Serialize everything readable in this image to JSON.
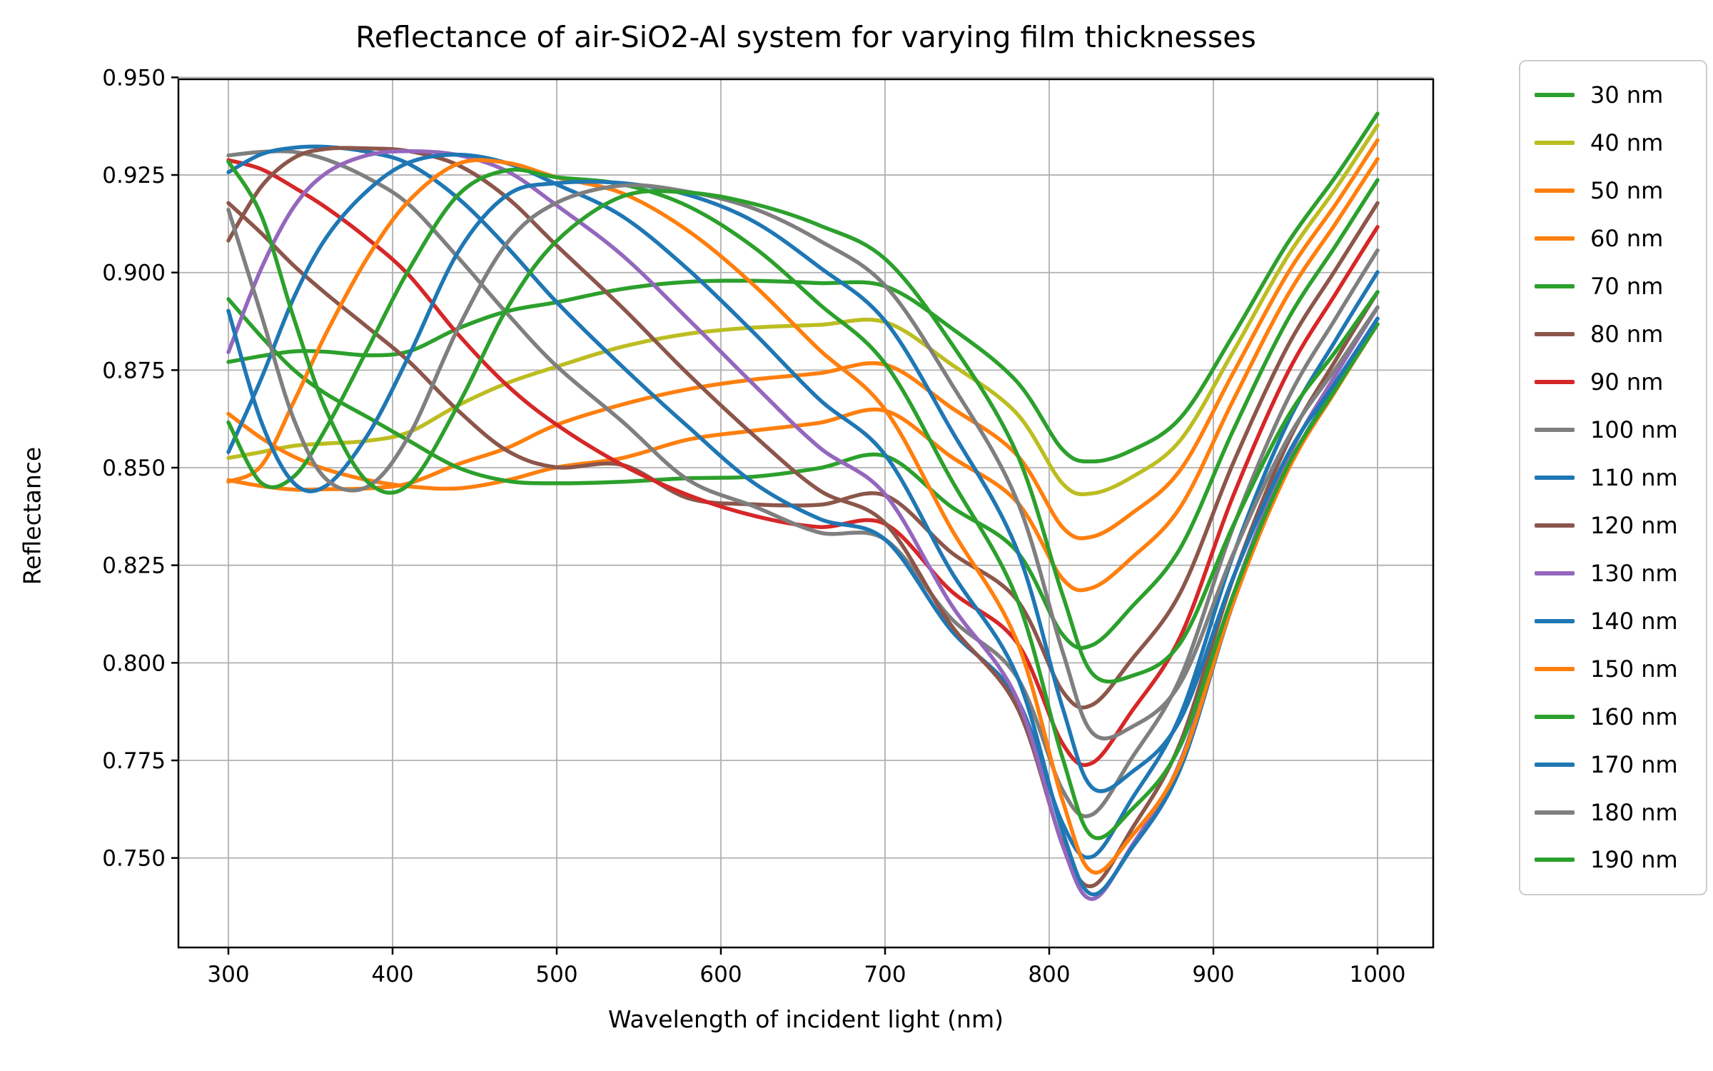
{
  "chart_data": {
    "type": "line",
    "title": "Reflectance of air-SiO2-Al system for varying film thicknesses",
    "xlabel": "Wavelength of incident light (nm)",
    "ylabel": "Reflectance",
    "x_ticks": [
      300,
      400,
      500,
      600,
      700,
      800,
      900,
      1000
    ],
    "y_ticks": [
      0.75,
      0.775,
      0.8,
      0.825,
      0.85,
      0.875,
      0.9,
      0.925,
      0.95
    ],
    "y_tick_decimals": 3,
    "xlim": [
      269.6,
      1034.3
    ],
    "ylim": [
      0.7271,
      0.9496
    ],
    "grid": true,
    "grid_color": "#b0b0b0",
    "axes_color": "#000000",
    "background_color": "#ffffff",
    "legend_position": "right-outside",
    "x": [
      300,
      320,
      340,
      360,
      385,
      410,
      440,
      470,
      500,
      540,
      580,
      620,
      660,
      700,
      740,
      780,
      808,
      826,
      850,
      880,
      912,
      945,
      975,
      1000
    ],
    "series": [
      {
        "name": "30 nm",
        "color": "#2ca02c",
        "values": [
          0.8771,
          0.8786,
          0.8798,
          0.8797,
          0.8788,
          0.8798,
          0.8857,
          0.8901,
          0.8924,
          0.8958,
          0.8976,
          0.8979,
          0.8973,
          0.8965,
          0.8859,
          0.8722,
          0.8547,
          0.8516,
          0.8544,
          0.8628,
          0.8839,
          0.9074,
          0.9249,
          0.9407
        ]
      },
      {
        "name": "40 nm",
        "color": "#bcbd22",
        "values": [
          0.8525,
          0.854,
          0.8556,
          0.8562,
          0.8569,
          0.8591,
          0.866,
          0.8717,
          0.8759,
          0.881,
          0.8843,
          0.8859,
          0.8866,
          0.8873,
          0.8766,
          0.864,
          0.846,
          0.8434,
          0.8475,
          0.8571,
          0.8797,
          0.904,
          0.9218,
          0.9377
        ]
      },
      {
        "name": "50 nm",
        "color": "#ff7f0e",
        "values": [
          0.8468,
          0.8453,
          0.8444,
          0.8445,
          0.8447,
          0.846,
          0.8509,
          0.8551,
          0.861,
          0.8662,
          0.8701,
          0.8726,
          0.8742,
          0.8764,
          0.8655,
          0.8534,
          0.8348,
          0.8323,
          0.8382,
          0.8495,
          0.8742,
          0.8996,
          0.9178,
          0.9339
        ]
      },
      {
        "name": "60 nm",
        "color": "#ff7f0e",
        "values": [
          0.8638,
          0.8576,
          0.8528,
          0.8495,
          0.8468,
          0.8452,
          0.8447,
          0.8468,
          0.8501,
          0.8525,
          0.8572,
          0.8595,
          0.8615,
          0.8646,
          0.8529,
          0.8414,
          0.8216,
          0.8192,
          0.8268,
          0.84,
          0.8672,
          0.894,
          0.9129,
          0.9291
        ]
      },
      {
        "name": "70 nm",
        "color": "#2ca02c",
        "values": [
          0.8932,
          0.8836,
          0.875,
          0.8688,
          0.8629,
          0.8569,
          0.85,
          0.8466,
          0.846,
          0.8464,
          0.8473,
          0.8477,
          0.8499,
          0.853,
          0.8401,
          0.8287,
          0.8073,
          0.8045,
          0.8142,
          0.8295,
          0.8595,
          0.8877,
          0.9072,
          0.9237
        ]
      },
      {
        "name": "80 nm",
        "color": "#8c564b",
        "values": [
          0.9178,
          0.9101,
          0.9017,
          0.8944,
          0.8859,
          0.8772,
          0.8646,
          0.8543,
          0.8501,
          0.8507,
          0.8422,
          0.8406,
          0.8405,
          0.8429,
          0.8284,
          0.8163,
          0.7928,
          0.7892,
          0.8007,
          0.8181,
          0.8511,
          0.8809,
          0.9011,
          0.9178
        ]
      },
      {
        "name": "90 nm",
        "color": "#d62728",
        "values": [
          0.9288,
          0.9265,
          0.9218,
          0.9165,
          0.9086,
          0.8993,
          0.8841,
          0.871,
          0.861,
          0.8507,
          0.843,
          0.8377,
          0.8348,
          0.8356,
          0.8185,
          0.8054,
          0.7794,
          0.7743,
          0.7874,
          0.8068,
          0.8427,
          0.8741,
          0.8949,
          0.9117
        ]
      },
      {
        "name": "100 nm",
        "color": "#7f7f7f",
        "values": [
          0.93,
          0.9309,
          0.9309,
          0.9289,
          0.9242,
          0.9174,
          0.9038,
          0.8894,
          0.876,
          0.8618,
          0.8469,
          0.8401,
          0.8334,
          0.8316,
          0.8115,
          0.7966,
          0.7675,
          0.7611,
          0.7754,
          0.7963,
          0.8347,
          0.8673,
          0.8886,
          0.9057
        ]
      },
      {
        "name": "110 nm",
        "color": "#1f77b4",
        "values": [
          0.9257,
          0.9303,
          0.932,
          0.9322,
          0.9309,
          0.9278,
          0.919,
          0.9064,
          0.8924,
          0.8759,
          0.8605,
          0.8461,
          0.8369,
          0.8316,
          0.8085,
          0.791,
          0.759,
          0.7503,
          0.7649,
          0.7867,
          0.8275,
          0.8613,
          0.883,
          0.9001
        ]
      },
      {
        "name": "120 nm",
        "color": "#8c564b",
        "values": [
          0.9082,
          0.922,
          0.9294,
          0.9317,
          0.9318,
          0.9311,
          0.9275,
          0.9191,
          0.9069,
          0.891,
          0.874,
          0.8583,
          0.8442,
          0.8358,
          0.8098,
          0.789,
          0.7539,
          0.7428,
          0.7572,
          0.7797,
          0.8216,
          0.8561,
          0.8779,
          0.895
        ]
      },
      {
        "name": "130 nm",
        "color": "#9467bd",
        "values": [
          0.8796,
          0.901,
          0.9169,
          0.9256,
          0.9301,
          0.9311,
          0.9301,
          0.9259,
          0.9172,
          0.9044,
          0.8881,
          0.8713,
          0.8552,
          0.8432,
          0.8151,
          0.7912,
          0.7534,
          0.7395,
          0.7529,
          0.7749,
          0.8172,
          0.8521,
          0.8741,
          0.8911
        ]
      },
      {
        "name": "140 nm",
        "color": "#1f77b4",
        "values": [
          0.854,
          0.8728,
          0.8937,
          0.9092,
          0.9211,
          0.9282,
          0.9302,
          0.928,
          0.9226,
          0.9144,
          0.9008,
          0.8846,
          0.8675,
          0.8533,
          0.8236,
          0.797,
          0.7569,
          0.7407,
          0.7523,
          0.773,
          0.8152,
          0.8497,
          0.8714,
          0.8882
        ]
      },
      {
        "name": "150 nm",
        "color": "#ff7f0e",
        "values": [
          0.8464,
          0.8505,
          0.867,
          0.8848,
          0.904,
          0.9184,
          0.9279,
          0.9281,
          0.9244,
          0.9203,
          0.9107,
          0.8968,
          0.8802,
          0.8649,
          0.8346,
          0.8059,
          0.7649,
          0.7465,
          0.7555,
          0.7744,
          0.8153,
          0.849,
          0.8701,
          0.8868
        ]
      },
      {
        "name": "160 nm",
        "color": "#2ca02c",
        "values": [
          0.8616,
          0.8461,
          0.8478,
          0.8605,
          0.8806,
          0.9008,
          0.9199,
          0.9262,
          0.9244,
          0.9226,
          0.917,
          0.9065,
          0.8919,
          0.8767,
          0.8472,
          0.8168,
          0.7758,
          0.7556,
          0.7623,
          0.7789,
          0.8173,
          0.8502,
          0.8705,
          0.8868
        ]
      },
      {
        "name": "170 nm",
        "color": "#1f77b4",
        "values": [
          0.8902,
          0.8618,
          0.846,
          0.8455,
          0.8585,
          0.8787,
          0.9053,
          0.9199,
          0.9229,
          0.9229,
          0.9199,
          0.9131,
          0.9014,
          0.8876,
          0.8599,
          0.8294,
          0.7887,
          0.7681,
          0.7719,
          0.7856,
          0.8218,
          0.8531,
          0.8722,
          0.8882
        ]
      },
      {
        "name": "180 nm",
        "color": "#7f7f7f",
        "values": [
          0.9161,
          0.8892,
          0.8622,
          0.8469,
          0.8452,
          0.8582,
          0.8858,
          0.9077,
          0.9179,
          0.9223,
          0.9207,
          0.9164,
          0.9082,
          0.8967,
          0.8718,
          0.842,
          0.8031,
          0.7822,
          0.7835,
          0.7949,
          0.8278,
          0.8572,
          0.8757,
          0.8911
        ]
      },
      {
        "name": "190 nm",
        "color": "#2ca02c",
        "values": [
          0.9284,
          0.9147,
          0.8881,
          0.8643,
          0.8463,
          0.8457,
          0.8661,
          0.891,
          0.9081,
          0.9195,
          0.9205,
          0.9176,
          0.9121,
          0.9035,
          0.8821,
          0.8539,
          0.8176,
          0.7974,
          0.7966,
          0.8052,
          0.8351,
          0.8628,
          0.8801,
          0.895
        ]
      }
    ]
  }
}
